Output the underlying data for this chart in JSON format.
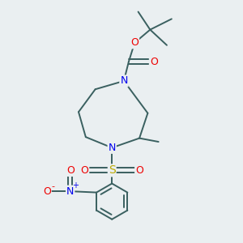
{
  "bg_color": "#eaeff1",
  "atom_colors": {
    "C": "#3a3a3a",
    "N": "#0000ee",
    "O": "#ee0000",
    "S": "#bbaa00",
    "H": "#3a3a3a"
  },
  "bond_color": "#3a6060",
  "bond_lw": 1.4,
  "figsize": [
    3.0,
    3.0
  ],
  "dpi": 100
}
